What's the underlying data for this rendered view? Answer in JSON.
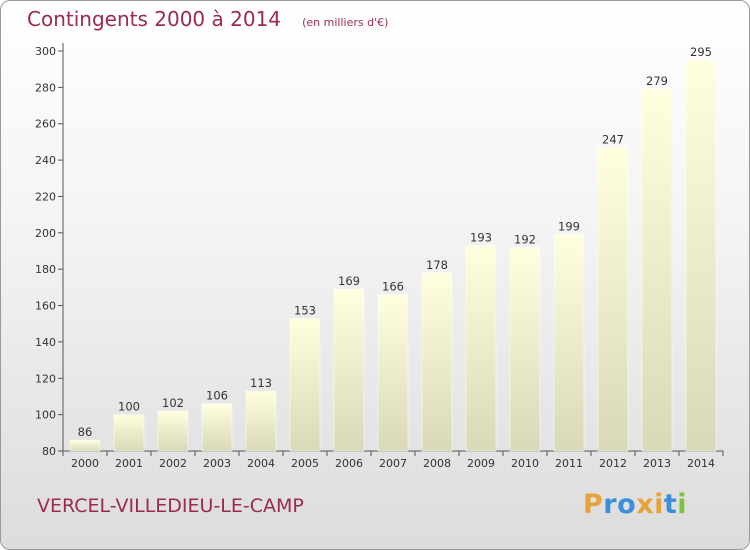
{
  "header": {
    "title": "Contingents 2000 à 2014",
    "subtitle": "(en milliers d'€)"
  },
  "footer": {
    "commune": "VERCEL-VILLEDIEU-LE-CAMP",
    "brand": "Proxiti"
  },
  "colors": {
    "title": "#9a2a54",
    "bar_top": "#ffffe0",
    "bar_bottom": "#d9d9b8",
    "axis": "#555555",
    "brand_letters": [
      "#e8a23a",
      "#3a8fd8",
      "#3a8fd8",
      "#e8a23a",
      "#e8a23a",
      "#3a8fd8",
      "#7cc242"
    ]
  },
  "chart_data": {
    "type": "bar",
    "title": "Contingents 2000 à 2014",
    "subtitle": "(en milliers d'€)",
    "xlabel": "",
    "ylabel": "",
    "categories": [
      "2000",
      "2001",
      "2002",
      "2003",
      "2004",
      "2005",
      "2006",
      "2007",
      "2008",
      "2009",
      "2010",
      "2011",
      "2012",
      "2013",
      "2014"
    ],
    "values": [
      86,
      100,
      102,
      106,
      113,
      153,
      169,
      166,
      178,
      193,
      192,
      199,
      247,
      279,
      295
    ],
    "ylim": [
      80,
      300
    ],
    "yticks": [
      80,
      100,
      120,
      140,
      160,
      180,
      200,
      220,
      240,
      260,
      280,
      300
    ],
    "grid": false,
    "legend": "none",
    "data_labels": true
  }
}
